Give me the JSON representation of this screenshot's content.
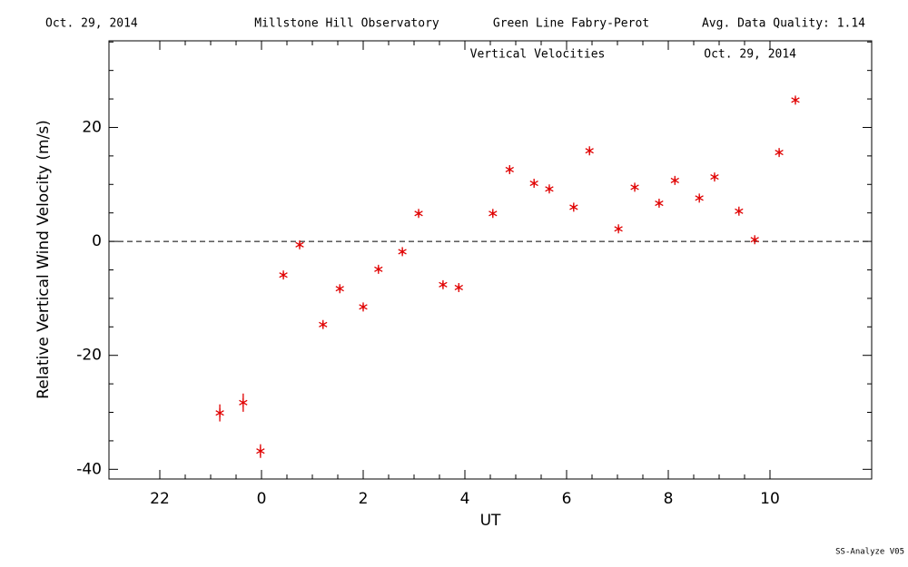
{
  "chart_data": {
    "type": "scatter",
    "header": [
      "Oct. 29, 2014",
      "Millstone Hill Observatory",
      "Green Line Fabry-Perot",
      "Avg. Data Quality: 1.14"
    ],
    "title": "Vertical Velocities",
    "subtitle": "Oct. 29, 2014",
    "ylabel": "Relative Vertical Wind Velocity (m/s)",
    "xlabel": "UT",
    "footer": "SS-Analyze V05",
    "xlim": [
      -3,
      12
    ],
    "ylim": [
      -41.7,
      35.2
    ],
    "xticks": [
      {
        "value": -2,
        "label": "22"
      },
      0,
      2,
      4,
      6,
      8,
      10
    ],
    "yticks": [
      -40,
      -20,
      0,
      20
    ],
    "hline": 0,
    "color": "#e00000",
    "x": [
      -0.82,
      -0.36,
      -0.02,
      0.43,
      0.75,
      1.21,
      1.54,
      2.0,
      2.3,
      2.77,
      3.09,
      3.57,
      3.88,
      4.55,
      4.88,
      5.36,
      5.66,
      6.14,
      6.45,
      7.02,
      7.34,
      7.82,
      8.13,
      8.61,
      8.91,
      9.39,
      9.7,
      10.18,
      10.5
    ],
    "values": [
      -30.1,
      -28.3,
      -36.8,
      -5.9,
      -0.6,
      -14.6,
      -8.3,
      -11.5,
      -4.9,
      -1.8,
      4.9,
      -7.6,
      -8.1,
      4.9,
      12.6,
      10.2,
      9.2,
      6.0,
      15.9,
      2.2,
      9.5,
      6.7,
      10.7,
      7.6,
      11.3,
      5.3,
      0.3,
      15.6,
      24.8
    ],
    "errors": [
      1.5,
      1.6,
      1.2,
      0.5,
      0.5,
      0.5,
      0.5,
      0.5,
      0.5,
      0.5,
      0.5,
      0.5,
      0.5,
      0.5,
      0.5,
      0.5,
      0.5,
      0.5,
      0.5,
      0.5,
      0.5,
      0.5,
      0.5,
      0.5,
      0.5,
      0.5,
      0.5,
      0.5,
      0.5
    ]
  }
}
